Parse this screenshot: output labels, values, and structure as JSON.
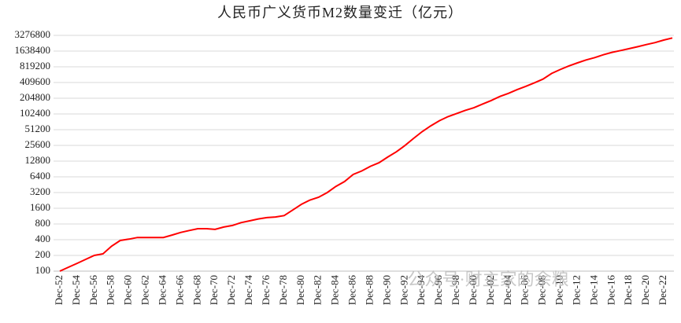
{
  "chart_data": {
    "type": "line",
    "title": "人民币广义货币M2数量变迁（亿元）",
    "watermark": "公众号·财主家的余粮",
    "categories": [
      "Dec-52",
      null,
      "Dec-54",
      null,
      "Dec-56",
      null,
      "Dec-58",
      null,
      "Dec-60",
      null,
      "Dec-62",
      null,
      "Dec-64",
      null,
      "Dec-66",
      null,
      "Dec-68",
      null,
      "Dec-70",
      null,
      "Dec-72",
      null,
      "Dec-74",
      null,
      "Dec-76",
      null,
      "Dec-78",
      null,
      "Dec-80",
      null,
      "Dec-82",
      null,
      "Dec-84",
      null,
      "Dec-86",
      null,
      "Dec-88",
      null,
      "Dec-90",
      null,
      "Dec-92",
      null,
      "Dec-94",
      null,
      "Dec-96",
      null,
      "Dec-98",
      null,
      "Dec-00",
      null,
      "Dec-02",
      null,
      "Dec-04",
      null,
      "Dec-06",
      null,
      "Dec-08",
      null,
      "Dec-10",
      null,
      "Dec-12",
      null,
      "Dec-14",
      null,
      "Dec-16",
      null,
      "Dec-18",
      null,
      "Dec-20",
      null,
      "Dec-22",
      null
    ],
    "series": [
      {
        "name": "M2",
        "color": "#ff0000",
        "values": [
          100,
          119,
          141,
          168,
          200,
          214,
          300,
          386,
          410,
          440,
          440,
          440,
          440,
          490,
          550,
          600,
          650,
          650,
          630,
          700,
          750,
          850,
          920,
          1000,
          1060,
          1090,
          1160,
          1480,
          1900,
          2300,
          2600,
          3200,
          4200,
          5200,
          7100,
          8300,
          10200,
          11900,
          15300,
          19300,
          25400,
          34900,
          46900,
          60700,
          76000,
          90900,
          104500,
          119900,
          134600,
          158300,
          185000,
          221200,
          254100,
          298800,
          345600,
          403400,
          475200,
          610200,
          725800,
          851600,
          974100,
          1106500,
          1228400,
          1392300,
          1550100,
          1676800,
          1826700,
          1986500,
          2186800,
          2382900,
          2664000,
          2922000
        ]
      }
    ],
    "ylim": [
      100,
      3276800
    ],
    "yticks": [
      100,
      200,
      400,
      800,
      1600,
      3200,
      6400,
      12800,
      25600,
      51200,
      102400,
      204800,
      409600,
      819200,
      1638400,
      3276800
    ],
    "log_scale": true,
    "grid": true
  }
}
